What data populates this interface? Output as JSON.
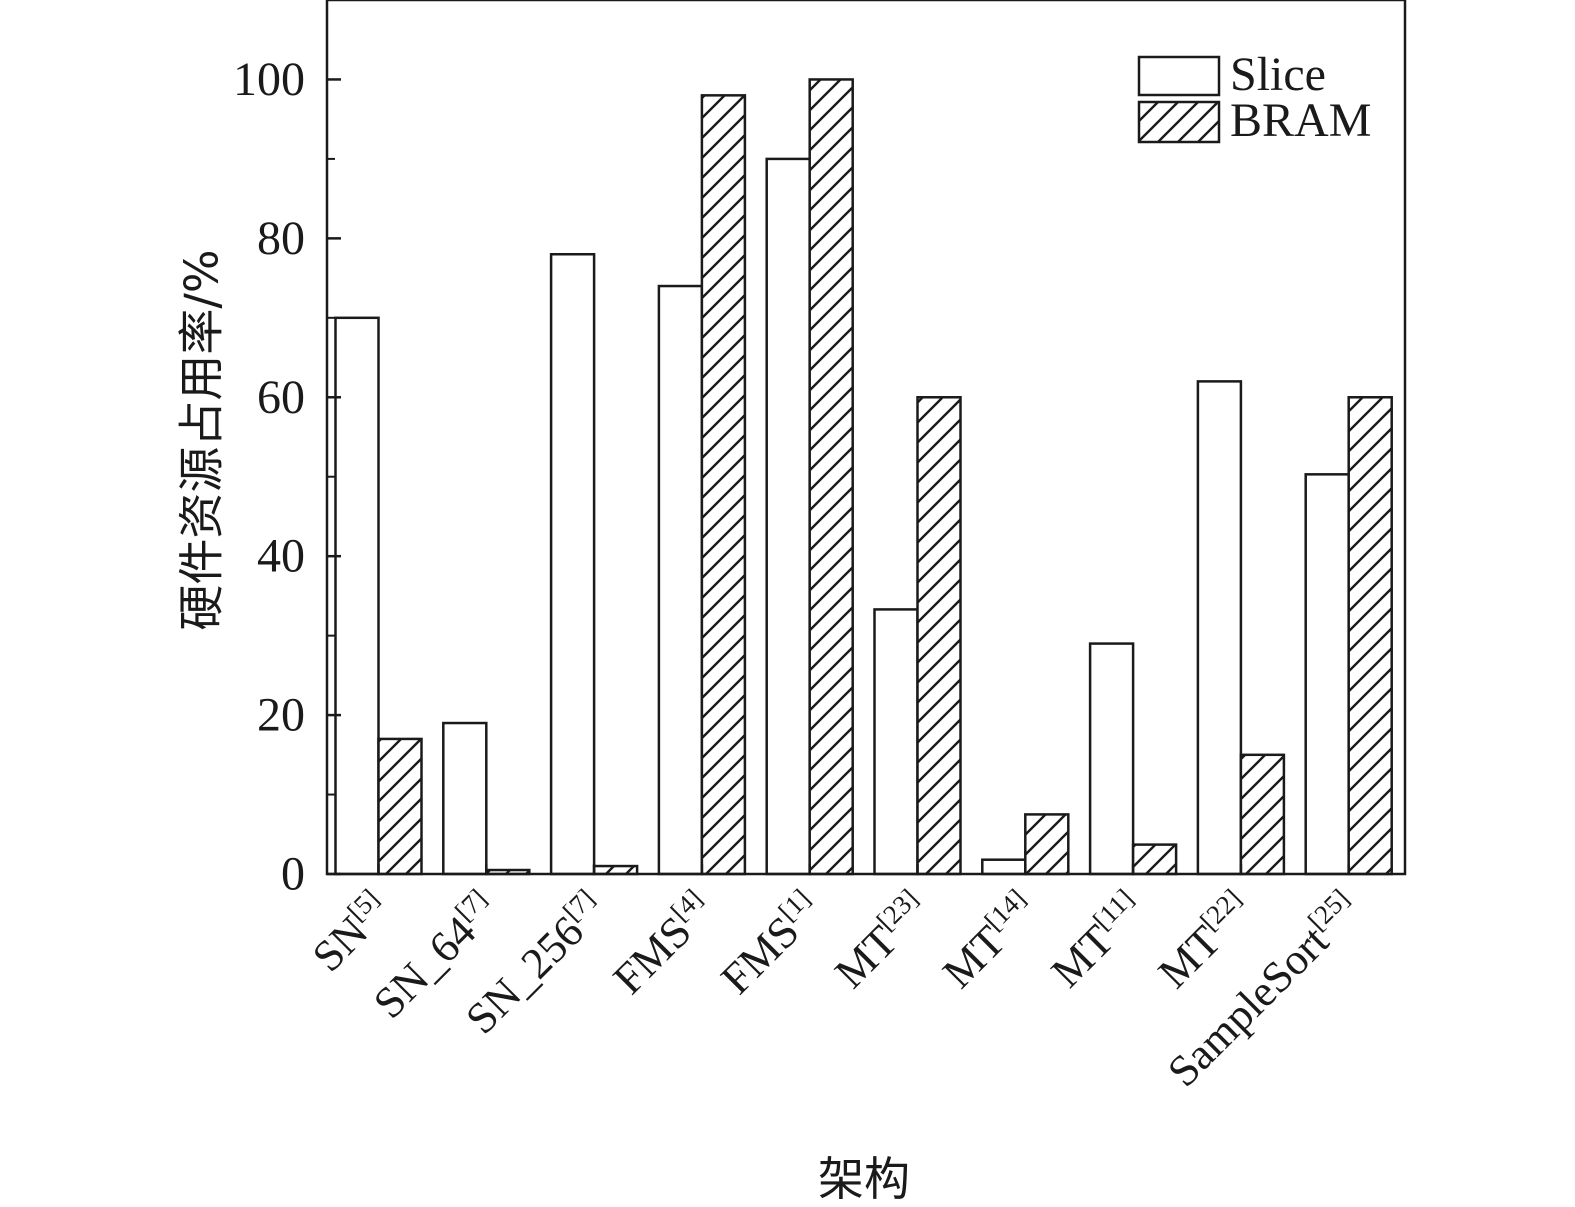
{
  "chart_data": {
    "type": "bar",
    "ylabel": "硬件资源占用率/%",
    "xlabel": "架构",
    "ylim": [
      0,
      110
    ],
    "yticks": [
      0,
      20,
      40,
      60,
      80,
      100
    ],
    "categories": [
      {
        "base": "SN",
        "sup": "[5]"
      },
      {
        "base": "SN_64",
        "sup": "[7]"
      },
      {
        "base": "SN_256",
        "sup": "[7]"
      },
      {
        "base": "FMS",
        "sup": "[4]"
      },
      {
        "base": "FMS",
        "sup": "[1]"
      },
      {
        "base": "MT",
        "sup": "[23]"
      },
      {
        "base": "MT",
        "sup": "[14]"
      },
      {
        "base": "MT",
        "sup": "[11]"
      },
      {
        "base": "MT",
        "sup": "[22]"
      },
      {
        "base": "SampleSort",
        "sup": "[25]"
      }
    ],
    "series": [
      {
        "name": "Slice",
        "pattern": "none",
        "values": [
          70,
          19,
          78,
          74,
          90,
          33.3,
          1.8,
          29,
          62,
          50.3
        ]
      },
      {
        "name": "BRAM",
        "pattern": "hatch",
        "values": [
          17,
          0.5,
          1,
          98,
          100,
          60,
          7.5,
          3.7,
          15,
          60
        ]
      }
    ],
    "legend_position": "top-right",
    "grid": false,
    "colors": {
      "stroke": "#1a1a1a",
      "fill": "#ffffff"
    }
  }
}
